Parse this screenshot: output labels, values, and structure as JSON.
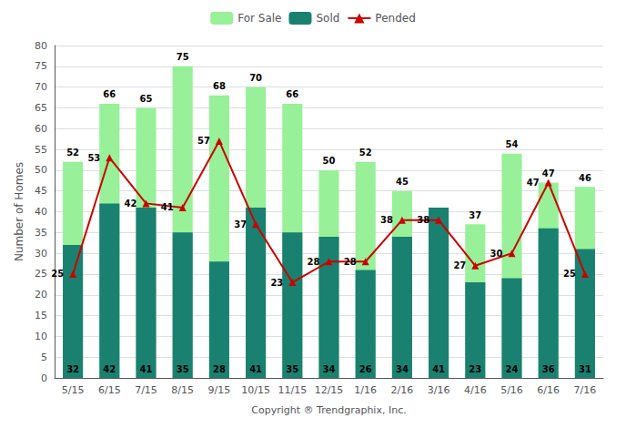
{
  "chart_data": {
    "type": "bar",
    "xlabel": "Copyright ® Trendgraphix, Inc.",
    "ylabel": "Number of Homes",
    "categories": [
      "5/15",
      "6/15",
      "7/15",
      "8/15",
      "9/15",
      "10/15",
      "11/15",
      "12/15",
      "1/16",
      "2/16",
      "3/16",
      "4/16",
      "5/16",
      "6/16",
      "7/16"
    ],
    "series": [
      {
        "name": "For Sale",
        "type": "bar",
        "color": "#98F098",
        "values": [
          52,
          66,
          65,
          75,
          68,
          70,
          66,
          50,
          52,
          45,
          37,
          37,
          54,
          47,
          46
        ]
      },
      {
        "name": "Sold",
        "type": "bar",
        "color": "#1A8070",
        "values": [
          32,
          42,
          41,
          35,
          28,
          41,
          35,
          34,
          26,
          34,
          41,
          23,
          24,
          36,
          31
        ]
      },
      {
        "name": "Pended",
        "type": "line",
        "color": "#CC0000",
        "marker": "triangle",
        "values": [
          25,
          53,
          42,
          41,
          57,
          37,
          23,
          28,
          28,
          38,
          38,
          27,
          30,
          47,
          25
        ]
      }
    ],
    "ylim": [
      0,
      80
    ],
    "yticks": [
      0,
      5,
      10,
      15,
      20,
      25,
      30,
      35,
      40,
      45,
      50,
      55,
      60,
      65,
      70,
      75,
      80
    ],
    "grid": true,
    "legend": "top",
    "data_labels": true
  }
}
